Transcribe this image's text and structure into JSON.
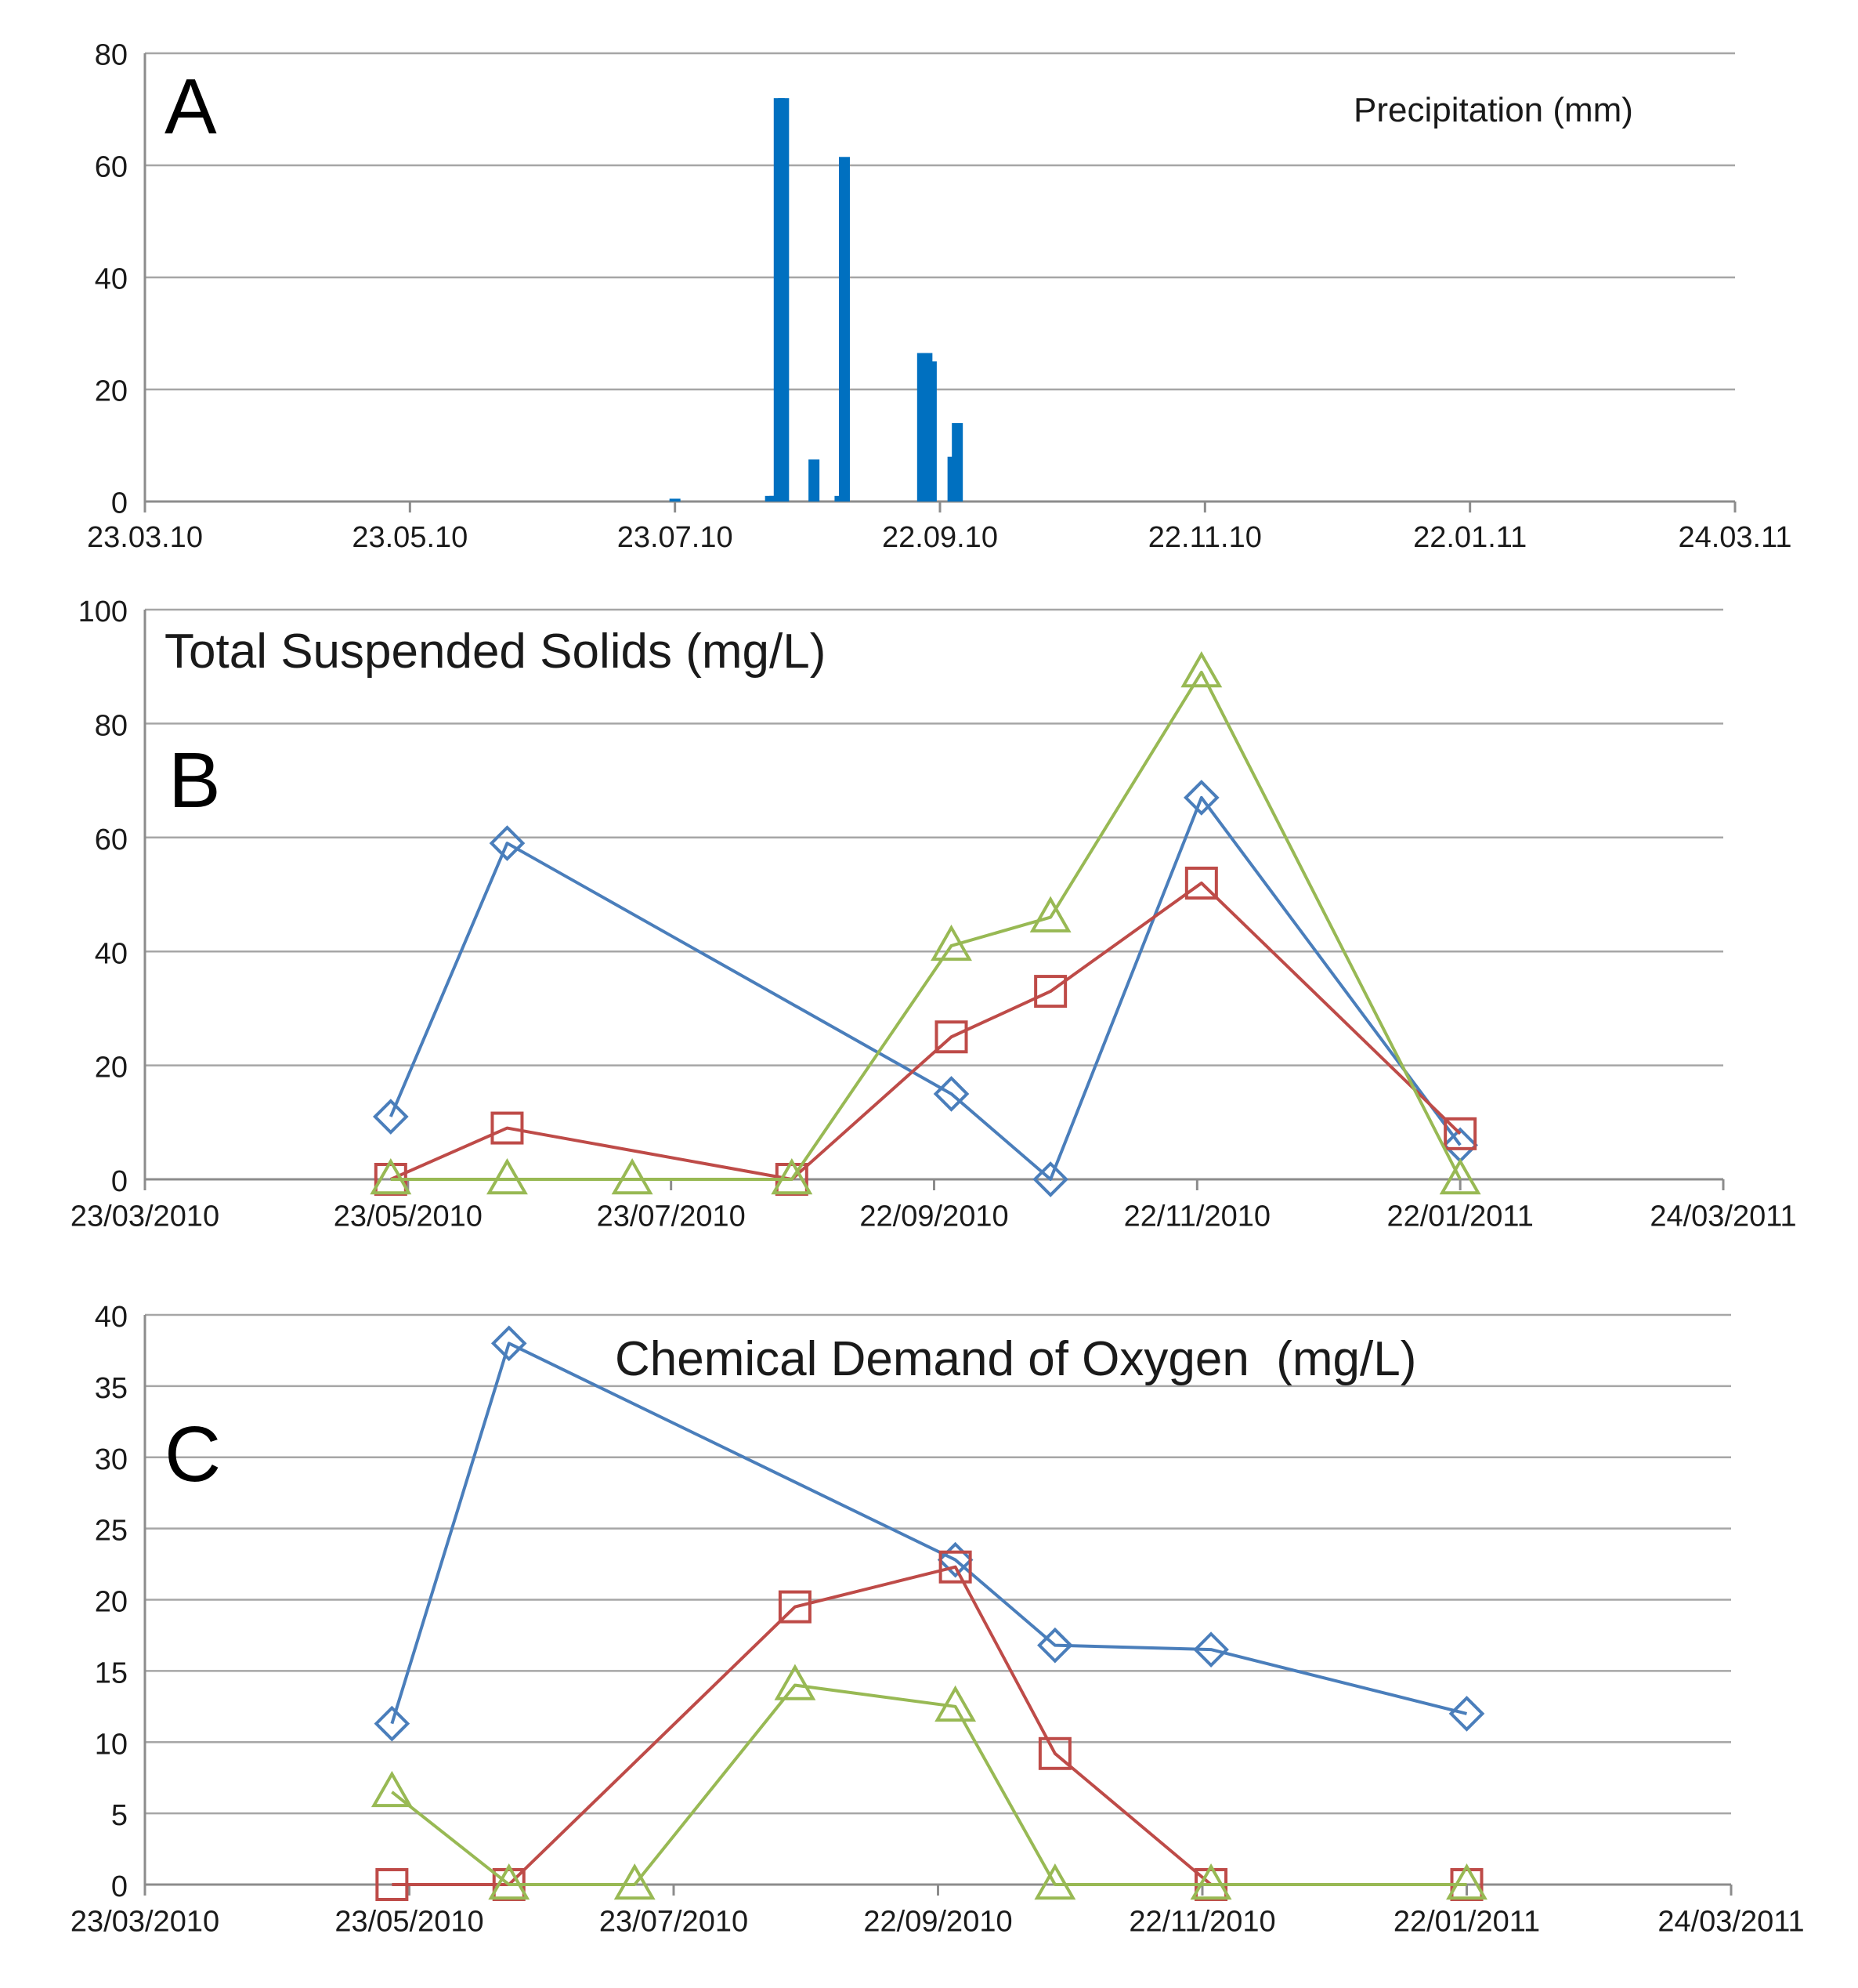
{
  "chart_data": [
    {
      "panel": "A",
      "type": "bar",
      "title": "Precipitation (mm)",
      "xlim": [
        "2010-03-23",
        "2011-03-24"
      ],
      "ylim": [
        0,
        80
      ],
      "x_ticks": [
        "23.03.10",
        "23.05.10",
        "23.07.10",
        "22.09.10",
        "22.11.10",
        "22.01.11",
        "24.03.11"
      ],
      "y_ticks": [
        "0",
        "20",
        "40",
        "60",
        "80"
      ],
      "grid": true,
      "x": [
        "2010-07-23",
        "2010-08-14",
        "2010-08-15",
        "2010-08-16",
        "2010-08-17",
        "2010-08-24",
        "2010-08-30",
        "2010-08-31",
        "2010-09-18",
        "2010-09-19",
        "2010-09-20",
        "2010-09-25",
        "2010-09-26"
      ],
      "values": [
        0.5,
        1,
        1,
        72,
        72,
        7.5,
        1,
        61.5,
        26.5,
        26.5,
        25,
        8,
        14
      ],
      "color": "#0070c0"
    },
    {
      "panel": "B",
      "type": "line",
      "title": "Total Suspended Solids (mg/L)",
      "xlim": [
        "2010-03-23",
        "2011-03-24"
      ],
      "ylim": [
        0,
        100
      ],
      "x_ticks": [
        "23/03/2010",
        "23/05/2010",
        "23/07/2010",
        "22/09/2010",
        "22/11/2010",
        "22/01/2011",
        "24/03/2011"
      ],
      "y_ticks": [
        "0",
        "20",
        "40",
        "60",
        "80",
        "100"
      ],
      "grid": true,
      "series": [
        {
          "marker": "diamond",
          "color": "#4a7ebb",
          "x": [
            "2010-05-19",
            "2010-06-15",
            "2010-09-26",
            "2010-10-19",
            "2010-11-23",
            "2011-01-22"
          ],
          "values": [
            11,
            59,
            15,
            0,
            67,
            6
          ]
        },
        {
          "marker": "square",
          "color": "#be4b48",
          "x": [
            "2010-05-19",
            "2010-06-15",
            "2010-08-20",
            "2010-09-26",
            "2010-10-19",
            "2010-11-23",
            "2011-01-22"
          ],
          "values": [
            0,
            9,
            0,
            25,
            33,
            52,
            8
          ]
        },
        {
          "marker": "triangle",
          "color": "#98b954",
          "x": [
            "2010-05-19",
            "2010-06-15",
            "2010-07-14",
            "2010-08-20",
            "2010-09-26",
            "2010-10-19",
            "2010-11-23",
            "2011-01-22"
          ],
          "values": [
            0,
            0,
            0,
            0,
            41,
            46,
            89,
            0
          ]
        }
      ]
    },
    {
      "panel": "C",
      "type": "line",
      "title": "Chemical Demand of Oxygen  (mg/L)",
      "xlim": [
        "2010-03-23",
        "2011-03-24"
      ],
      "ylim": [
        0,
        40
      ],
      "x_ticks": [
        "23/03/2010",
        "23/05/2010",
        "23/07/2010",
        "22/09/2010",
        "22/11/2010",
        "22/01/2011",
        "24/03/2011"
      ],
      "y_ticks": [
        "0",
        "5",
        "10",
        "15",
        "20",
        "25",
        "30",
        "35",
        "40"
      ],
      "grid": true,
      "series": [
        {
          "marker": "diamond",
          "color": "#4a7ebb",
          "x": [
            "2010-05-19",
            "2010-06-15",
            "2010-09-26",
            "2010-10-19",
            "2010-11-24",
            "2011-01-22"
          ],
          "values": [
            11.3,
            38,
            22.8,
            16.8,
            16.5,
            12
          ]
        },
        {
          "marker": "square",
          "color": "#be4b48",
          "x": [
            "2010-05-19",
            "2010-06-15",
            "2010-08-20",
            "2010-09-26",
            "2010-10-19",
            "2010-11-24",
            "2011-01-22"
          ],
          "values": [
            0,
            0,
            19.5,
            22.3,
            9.2,
            0,
            0
          ]
        },
        {
          "marker": "triangle",
          "color": "#98b954",
          "x": [
            "2010-05-19",
            "2010-06-15",
            "2010-07-14",
            "2010-08-20",
            "2010-09-26",
            "2010-10-19",
            "2010-11-24",
            "2011-01-22"
          ],
          "values": [
            6.5,
            0,
            0,
            14,
            12.5,
            0,
            0,
            0
          ]
        }
      ]
    }
  ],
  "panel_letters": [
    "A",
    "B",
    "C"
  ]
}
